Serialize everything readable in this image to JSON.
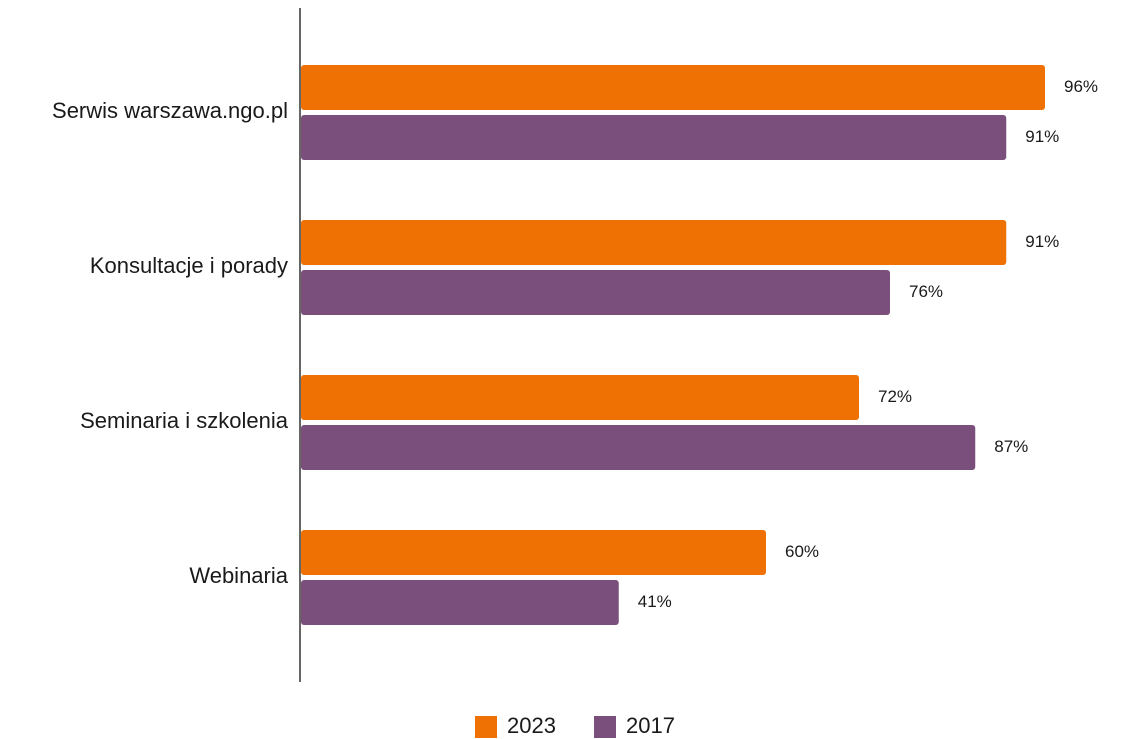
{
  "chart_data": {
    "type": "bar",
    "orientation": "horizontal",
    "categories": [
      "Serwis warszawa.ngo.pl",
      "Konsultacje i porady",
      "Seminaria i szkolenia",
      "Webinaria"
    ],
    "series": [
      {
        "name": "2023",
        "color": "#ef7103",
        "values": [
          96,
          91,
          72,
          60
        ],
        "labels": [
          "96%",
          "91%",
          "72%",
          "60%"
        ]
      },
      {
        "name": "2017",
        "color": "#7b4f7c",
        "values": [
          91,
          76,
          87,
          41
        ],
        "labels": [
          "91%",
          "76%",
          "87%",
          "41%"
        ]
      }
    ],
    "xlim": [
      0,
      100
    ],
    "grid": false,
    "legend_position": "bottom-center",
    "title": "",
    "xlabel": "",
    "ylabel": ""
  }
}
